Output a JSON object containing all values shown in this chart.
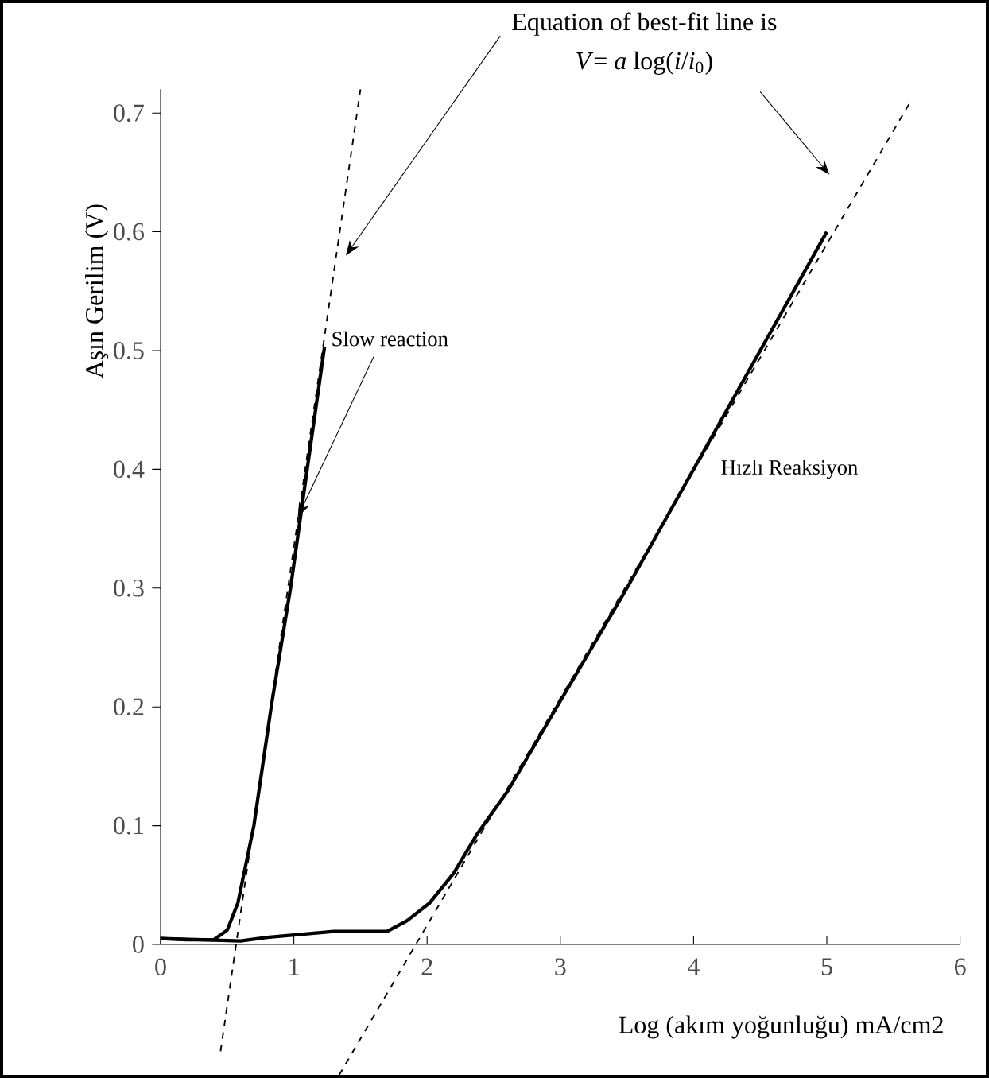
{
  "chart_data": {
    "type": "line",
    "xlabel": "Log (akım yoğunluğu) mA/cm2",
    "ylabel": "Aşın Gerilim (V)",
    "xlim": [
      0,
      6
    ],
    "ylim": [
      -0.11,
      0.72
    ],
    "xticks": [
      0,
      1,
      2,
      3,
      4,
      5,
      6
    ],
    "yticks": [
      0,
      0.1,
      0.2,
      0.3,
      0.4,
      0.5,
      0.6,
      0.7
    ],
    "marker": "none",
    "annotations": [
      "Equation of best-fit line is",
      "*V*= *a* log(*i*/*i*$_{0}$)"
    ],
    "series": [
      {
        "name": "Slow reaction",
        "color": "#000000",
        "line_style": "solid",
        "x": [
          0,
          0.2,
          0.4,
          0.5,
          0.58,
          0.7,
          0.83,
          0.975,
          1.1,
          1.23
        ],
        "values": [
          0.005,
          0.004,
          0.004,
          0.012,
          0.035,
          0.1,
          0.2,
          0.3,
          0.4,
          0.503
        ]
      },
      {
        "name": "Hızlı Reaksiyon",
        "color": "#000000",
        "line_style": "solid",
        "x": [
          0,
          0.3,
          0.6,
          0.8,
          1.0,
          1.3,
          1.7,
          1.85,
          2.02,
          2.2,
          2.37,
          2.61,
          3.0,
          3.5,
          4.0,
          4.5,
          5.0
        ],
        "values": [
          0.005,
          0.004,
          0.003,
          0.006,
          0.008,
          0.011,
          0.011,
          0.02,
          0.035,
          0.06,
          0.092,
          0.13,
          0.205,
          0.3,
          0.4,
          0.5,
          0.6
        ]
      },
      {
        "color": "#000000",
        "line_style": "dashed",
        "x": [
          0.45,
          1.5
        ],
        "values": [
          -0.09,
          0.72
        ]
      },
      {
        "color": "#000000",
        "line_style": "dashed",
        "x": [
          1.34,
          5.63
        ],
        "values": [
          -0.11,
          0.71
        ]
      }
    ]
  }
}
